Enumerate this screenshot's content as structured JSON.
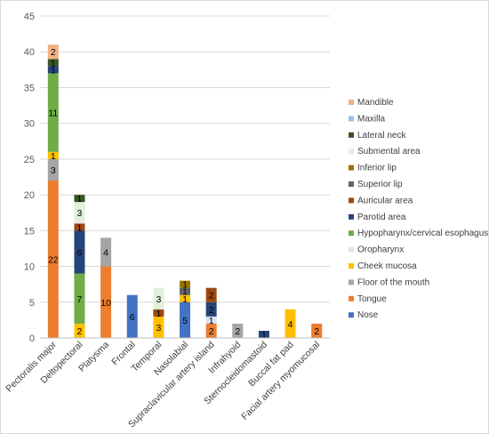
{
  "chart_data": {
    "type": "bar",
    "stacked": true,
    "title": "",
    "xlabel": "",
    "ylabel": "",
    "ylim": [
      0,
      45
    ],
    "y_ticks": [
      0,
      5,
      10,
      15,
      20,
      25,
      30,
      35,
      40,
      45
    ],
    "grid": "horizontal",
    "legend_position": "right",
    "categories": [
      "Pectoralis major",
      "Deltopectoral",
      "Platysma",
      "Frontal",
      "Temporal",
      "Nasolabial",
      "Supraclavicular artery island",
      "Infrahyoid",
      "Sternocleidomastoid",
      "Buccal fat pad",
      "Facial artery myomucosal"
    ],
    "series": [
      {
        "name": "Nose",
        "color": "#4472c4",
        "label_color": "#000000",
        "values": [
          0,
          0,
          0,
          6,
          0,
          5,
          0,
          0,
          0,
          0,
          0
        ]
      },
      {
        "name": "Tongue",
        "color": "#ed7d31",
        "label_color": "#000000",
        "values": [
          22,
          0,
          10,
          0,
          0,
          0,
          2,
          0,
          0,
          0,
          2
        ]
      },
      {
        "name": "Floor of the mouth",
        "color": "#a5a5a5",
        "label_color": "#000000",
        "values": [
          3,
          0,
          4,
          0,
          0,
          0,
          0,
          2,
          0,
          0,
          0
        ]
      },
      {
        "name": "Cheek mucosa",
        "color": "#ffc000",
        "label_color": "#000000",
        "values": [
          1,
          2,
          0,
          0,
          3,
          1,
          0,
          0,
          0,
          4,
          0
        ]
      },
      {
        "name": "Oropharynx",
        "color": "#dae3f3",
        "label_color": "#000000",
        "values": [
          0,
          0,
          0,
          0,
          0,
          0,
          1,
          0,
          0,
          0,
          0
        ]
      },
      {
        "name": "Hypopharynx/cervical esophagus",
        "color": "#70ad47",
        "label_color": "#000000",
        "values": [
          11,
          7,
          0,
          0,
          0,
          0,
          0,
          0,
          0,
          0,
          0
        ]
      },
      {
        "name": "Parotid area",
        "color": "#264478",
        "label_color": "#000000",
        "values": [
          1,
          6,
          0,
          0,
          0,
          0,
          2,
          0,
          1,
          0,
          0
        ]
      },
      {
        "name": "Auricular area",
        "color": "#9e480e",
        "label_color": "#000000",
        "values": [
          0,
          1,
          0,
          0,
          1,
          0,
          2,
          0,
          0,
          0,
          0
        ]
      },
      {
        "name": "Superior lip",
        "color": "#636363",
        "label_color": "#000000",
        "values": [
          0,
          0,
          0,
          0,
          0,
          1,
          0,
          0,
          0,
          0,
          0
        ]
      },
      {
        "name": "Inferior lip",
        "color": "#997300",
        "label_color": "#000000",
        "values": [
          0,
          0,
          0,
          0,
          0,
          1,
          0,
          0,
          0,
          0,
          0
        ]
      },
      {
        "name": "Submental area",
        "color": "#e2efda",
        "label_color": "#000000",
        "values": [
          0,
          3,
          0,
          0,
          3,
          0,
          0,
          0,
          0,
          0,
          0
        ]
      },
      {
        "name": "Lateral neck",
        "color": "#375623",
        "label_color": "#000000",
        "values": [
          1,
          1,
          0,
          0,
          0,
          0,
          0,
          0,
          0,
          0,
          0
        ]
      },
      {
        "name": "Maxilla",
        "color": "#9dc3e6",
        "label_color": "#000000",
        "values": [
          0,
          0,
          0,
          0,
          0,
          0,
          0,
          0,
          0,
          0,
          0
        ]
      },
      {
        "name": "Mandible",
        "color": "#f4b183",
        "label_color": "#000000",
        "values": [
          2,
          0,
          0,
          0,
          0,
          0,
          0,
          0,
          0,
          0,
          0
        ]
      }
    ],
    "legend_order": [
      "Mandible",
      "Maxilla",
      "Lateral neck",
      "Submental area",
      "Inferior lip",
      "Superior lip",
      "Auricular area",
      "Parotid area",
      "Hypopharynx/cervical esophagus",
      "Oropharynx",
      "Cheek mucosa",
      "Floor of the mouth",
      "Tongue",
      "Nose"
    ]
  }
}
